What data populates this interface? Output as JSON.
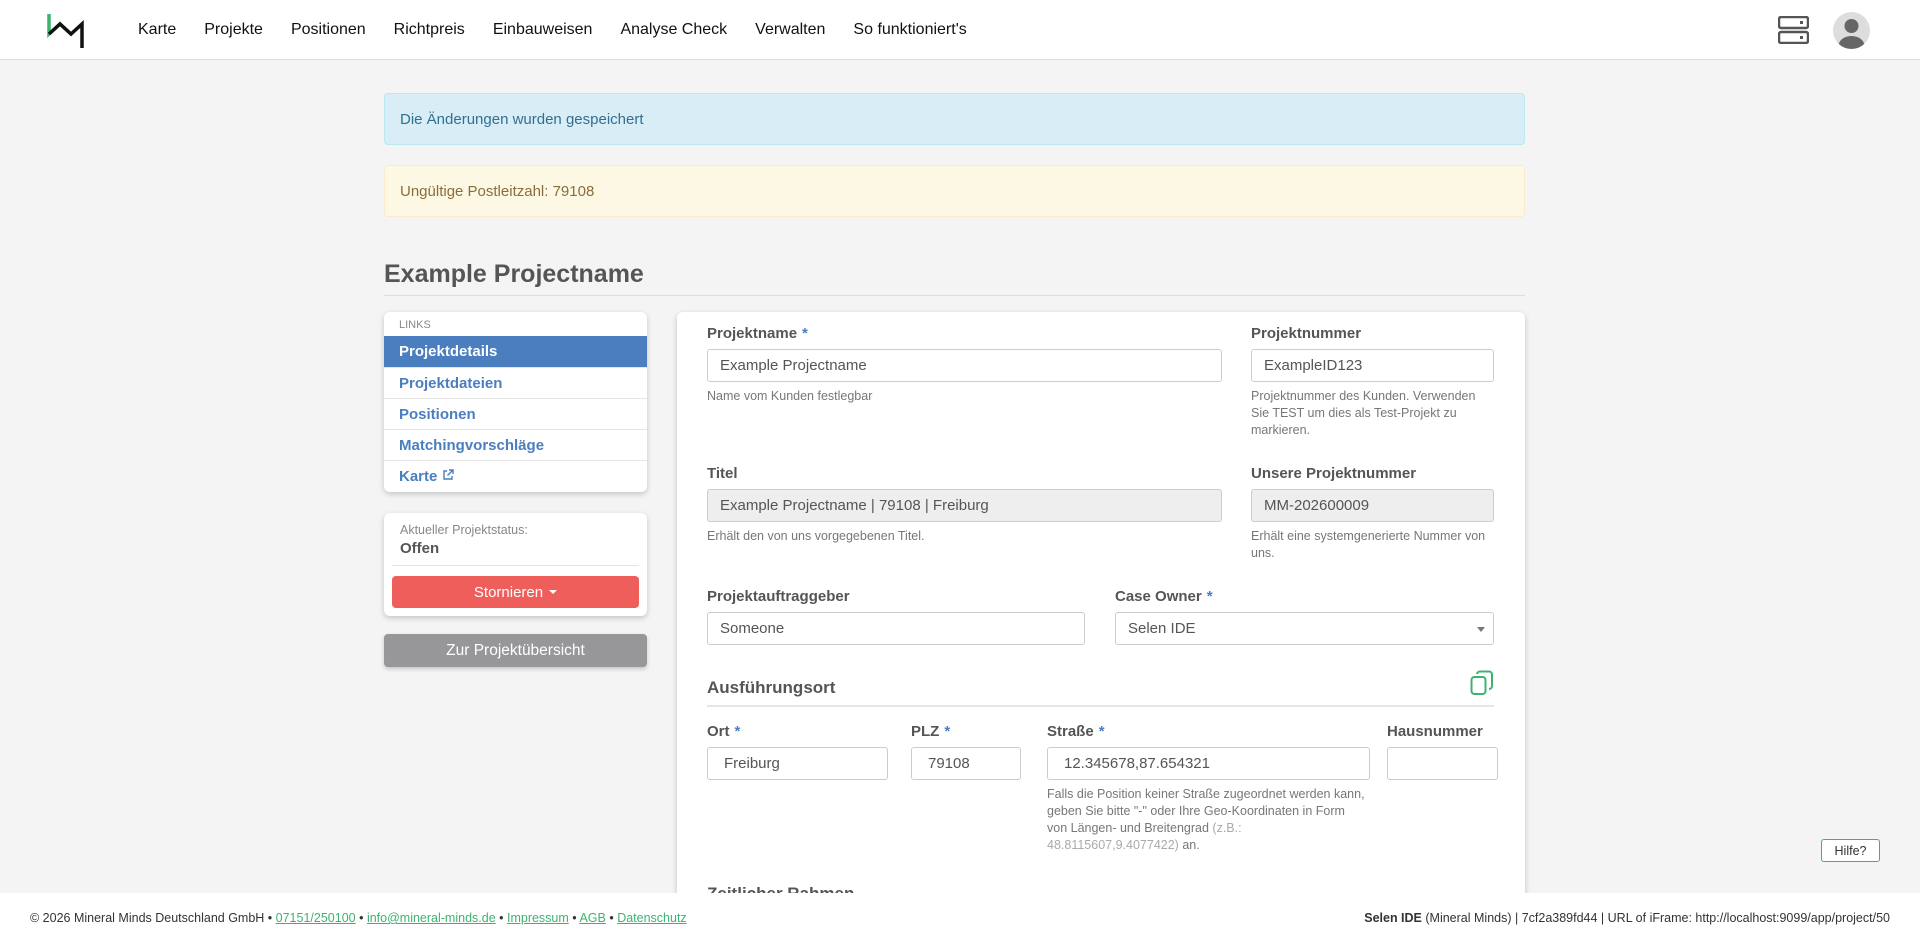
{
  "nav": {
    "items": [
      "Karte",
      "Projekte",
      "Positionen",
      "Richtpreis",
      "Einbauweisen",
      "Analyse Check",
      "Verwalten",
      "So funktioniert's"
    ]
  },
  "alerts": {
    "success": "Die Änderungen wurden gespeichert",
    "warning": "Ungültige Postleitzahl: 79108"
  },
  "page_title": "Example Projectname",
  "sidebar": {
    "header": "LINKS",
    "items": [
      "Projektdetails",
      "Projektdateien",
      "Positionen",
      "Matchingvorschläge",
      "Karte"
    ]
  },
  "status": {
    "label": "Aktueller Projektstatus:",
    "value": "Offen",
    "cancel_button": "Stornieren",
    "overview_button": "Zur Projektübersicht"
  },
  "form": {
    "projektname": {
      "label": "Projektname",
      "value": "Example Projectname",
      "help": "Name vom Kunden festlegbar"
    },
    "projektnummer": {
      "label": "Projektnummer",
      "value": "ExampleID123",
      "help": "Projektnummer des Kunden. Verwenden Sie TEST um dies als Test-Projekt zu markieren."
    },
    "titel": {
      "label": "Titel",
      "value": "Example Projectname | 79108 | Freiburg",
      "help": "Erhält den von uns vorgegebenen Titel."
    },
    "unsere": {
      "label": "Unsere Projektnummer",
      "value": "MM-202600009",
      "help": "Erhält eine systemgenerierte Nummer von uns."
    },
    "auftraggeber": {
      "label": "Projektauftraggeber",
      "value": "Someone"
    },
    "case_owner": {
      "label": "Case Owner",
      "value": "Selen IDE"
    },
    "section_location": "Ausführungsort",
    "ort": {
      "label": "Ort",
      "value": "Freiburg"
    },
    "plz": {
      "label": "PLZ",
      "value": "79108"
    },
    "strasse": {
      "label": "Straße",
      "value": "12.345678,87.654321",
      "help": "Falls die Position keiner Straße zugeordnet werden kann, geben Sie bitte \"-\" oder Ihre Geo-Koordinaten in Form von Längen- und Breitengrad",
      "help_example": "(z.B.: 48.8115607,9.4077422)",
      "help_end": " an."
    },
    "hausnummer": {
      "label": "Hausnummer",
      "value": ""
    },
    "section_time": "Zeitlicher Rahmen",
    "required_mark": "*"
  },
  "footer": {
    "copyright": "© 2026 Mineral Minds Deutschland GmbH •",
    "phone": "07151/250100",
    "email": "info@mineral-minds.de",
    "impressum": "Impressum",
    "agb": "AGB",
    "datenschutz": "Datenschutz",
    "sep": " • ",
    "user": "Selen IDE",
    "right_rest": " (Mineral Minds) | 7cf2a389fd44 | URL of iFrame: http://localhost:9099/app/project/50"
  },
  "help_button": "Hilfe?",
  "colors": {
    "accent": "#4a7ebf",
    "brand_green": "#3cb46e",
    "danger": "#ee5f5b"
  }
}
